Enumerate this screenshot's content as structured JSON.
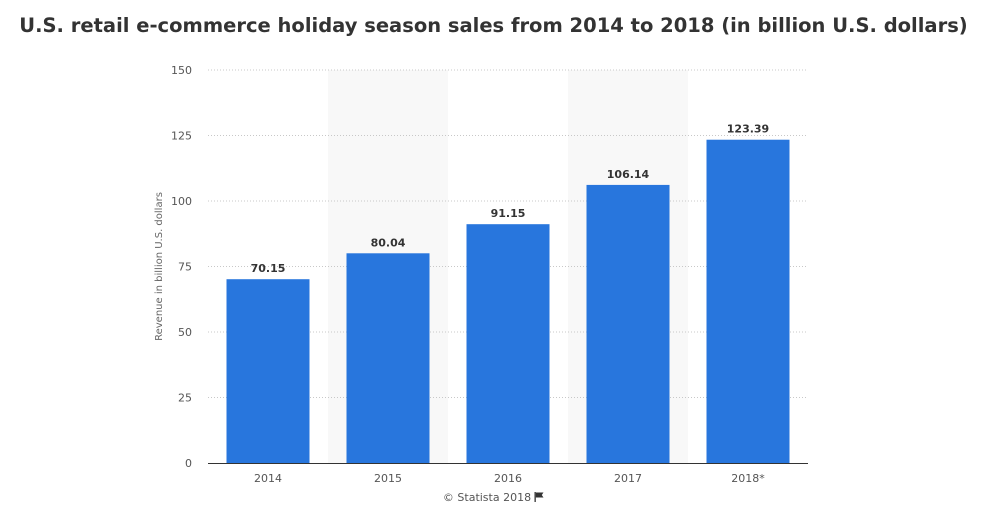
{
  "chart_data": {
    "type": "bar",
    "title": "U.S. retail e-commerce holiday season sales from 2014 to 2018 (in billion U.S. dollars)",
    "xlabel": "",
    "ylabel": "Revenue in billion U.S. dollars",
    "categories": [
      "2014",
      "2015",
      "2016",
      "2017",
      "2018*"
    ],
    "values": [
      70.15,
      80.04,
      91.15,
      106.14,
      123.39
    ],
    "data_labels": [
      "70.15",
      "80.04",
      "91.15",
      "106.14",
      "123.39"
    ],
    "ylim": [
      0,
      150
    ],
    "yticks": [
      0,
      25,
      50,
      75,
      100,
      125,
      150
    ],
    "grid": true,
    "legend": "none",
    "bar_color": "#2876dd",
    "alternate_band_color": "#f8f8f8",
    "credit": "© Statista 2018",
    "credit_icon": "flag-icon"
  }
}
